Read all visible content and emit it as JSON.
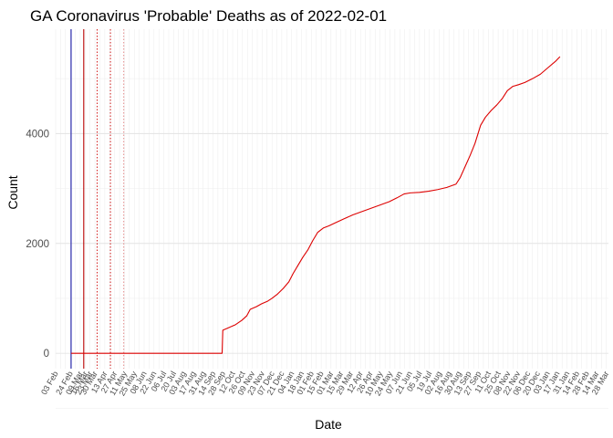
{
  "chart_data": {
    "type": "line",
    "title": "GA Coronavirus 'Probable' Deaths as of 2022-02-01",
    "xlabel": "Date",
    "ylabel": "Count",
    "yticks": [
      0,
      2000,
      4000
    ],
    "ylim": [
      -280,
      5900
    ],
    "xlim": [
      "2020-02-03",
      "2022-03-31"
    ],
    "grid": true,
    "legend": "none",
    "series": [
      {
        "color": "#dd0000",
        "points": [
          [
            "2020-02-25",
            0
          ],
          [
            "2020-09-27",
            0
          ],
          [
            "2020-09-28",
            420
          ],
          [
            "2020-10-07",
            470
          ],
          [
            "2020-10-16",
            520
          ],
          [
            "2020-10-25",
            600
          ],
          [
            "2020-11-01",
            680
          ],
          [
            "2020-11-06",
            800
          ],
          [
            "2020-11-15",
            850
          ],
          [
            "2020-11-22",
            900
          ],
          [
            "2020-12-01",
            950
          ],
          [
            "2020-12-07",
            1000
          ],
          [
            "2020-12-15",
            1080
          ],
          [
            "2020-12-23",
            1180
          ],
          [
            "2020-12-31",
            1300
          ],
          [
            "2021-01-06",
            1450
          ],
          [
            "2021-01-13",
            1600
          ],
          [
            "2021-01-20",
            1750
          ],
          [
            "2021-01-27",
            1880
          ],
          [
            "2021-02-03",
            2050
          ],
          [
            "2021-02-10",
            2200
          ],
          [
            "2021-02-18",
            2280
          ],
          [
            "2021-02-26",
            2320
          ],
          [
            "2021-03-08",
            2380
          ],
          [
            "2021-03-20",
            2450
          ],
          [
            "2021-04-01",
            2520
          ],
          [
            "2021-04-14",
            2580
          ],
          [
            "2021-04-27",
            2640
          ],
          [
            "2021-05-10",
            2700
          ],
          [
            "2021-05-23",
            2760
          ],
          [
            "2021-06-03",
            2830
          ],
          [
            "2021-06-13",
            2900
          ],
          [
            "2021-06-22",
            2920
          ],
          [
            "2021-07-05",
            2930
          ],
          [
            "2021-07-18",
            2950
          ],
          [
            "2021-07-31",
            2980
          ],
          [
            "2021-08-13",
            3020
          ],
          [
            "2021-08-26",
            3080
          ],
          [
            "2021-09-01",
            3200
          ],
          [
            "2021-09-08",
            3400
          ],
          [
            "2021-09-15",
            3600
          ],
          [
            "2021-09-22",
            3820
          ],
          [
            "2021-09-30",
            4150
          ],
          [
            "2021-10-07",
            4300
          ],
          [
            "2021-10-15",
            4420
          ],
          [
            "2021-10-23",
            4520
          ],
          [
            "2021-10-31",
            4640
          ],
          [
            "2021-11-07",
            4780
          ],
          [
            "2021-11-15",
            4860
          ],
          [
            "2021-11-23",
            4890
          ],
          [
            "2021-12-02",
            4930
          ],
          [
            "2021-12-13",
            5000
          ],
          [
            "2021-12-24",
            5080
          ],
          [
            "2022-01-04",
            5200
          ],
          [
            "2022-01-15",
            5320
          ],
          [
            "2022-01-21",
            5400
          ]
        ]
      }
    ],
    "vlines": [
      {
        "x": "2020-02-25",
        "color": "#1a1aa8",
        "style": "solid"
      },
      {
        "x": "2020-03-14",
        "color": "#b80000",
        "style": "solid"
      },
      {
        "x": "2020-04-02",
        "color": "#cc0000",
        "style": "dotted"
      },
      {
        "x": "2020-04-21",
        "color": "#cc0000",
        "style": "dotted"
      },
      {
        "x": "2020-05-10",
        "color": "#e08080",
        "style": "dotted"
      }
    ],
    "xtick_dates": [
      "2020-02-03",
      "2020-02-24",
      "2020-03-09",
      "2020-03-16",
      "2020-03-23",
      "2020-03-30",
      "2020-04-13",
      "2020-04-27",
      "2020-05-11",
      "2020-05-25",
      "2020-06-08",
      "2020-06-22",
      "2020-07-06",
      "2020-07-20",
      "2020-08-03",
      "2020-08-17",
      "2020-08-31",
      "2020-09-14",
      "2020-09-28",
      "2020-10-12",
      "2020-10-26",
      "2020-11-09",
      "2020-11-23",
      "2020-12-07",
      "2020-12-21",
      "2021-01-04",
      "2021-01-18",
      "2021-02-01",
      "2021-02-15",
      "2021-03-01",
      "2021-03-15",
      "2021-03-29",
      "2021-04-12",
      "2021-04-26",
      "2021-05-10",
      "2021-05-24",
      "2021-06-07",
      "2021-06-21",
      "2021-07-05",
      "2021-07-19",
      "2021-08-02",
      "2021-08-16",
      "2021-08-30",
      "2021-09-13",
      "2021-09-27",
      "2021-10-11",
      "2021-10-25",
      "2021-11-08",
      "2021-11-22",
      "2021-12-06",
      "2021-12-20",
      "2022-01-03",
      "2022-01-17",
      "2022-01-31",
      "2022-02-14",
      "2022-02-28",
      "2022-03-14",
      "2022-03-28"
    ],
    "xtick_labels": [
      "03 Feb",
      "24 Feb",
      "09 Mar",
      "16 Mar",
      "23 Mar",
      "30 Mar",
      "13 Apr",
      "27 Apr",
      "11 May",
      "25 May",
      "08 Jun",
      "22 Jun",
      "06 Jul",
      "20 Jul",
      "03 Aug",
      "17 Aug",
      "31 Aug",
      "14 Sep",
      "28 Sep",
      "12 Oct",
      "26 Oct",
      "09 Nov",
      "23 Nov",
      "07 Dec",
      "21 Dec",
      "04 Jan",
      "18 Jan",
      "01 Feb",
      "15 Feb",
      "01 Mar",
      "15 Mar",
      "29 Mar",
      "12 Apr",
      "26 Apr",
      "10 May",
      "24 May",
      "07 Jun",
      "21 Jun",
      "05 Jul",
      "19 Jul",
      "02 Aug",
      "16 Aug",
      "30 Aug",
      "13 Sep",
      "27 Sep",
      "11 Oct",
      "25 Oct",
      "08 Nov",
      "22 Nov",
      "06 Dec",
      "20 Dec",
      "03 Jan",
      "17 Jan",
      "31 Jan",
      "14 Feb",
      "28 Feb",
      "14 Mar",
      "28 Mar"
    ]
  }
}
